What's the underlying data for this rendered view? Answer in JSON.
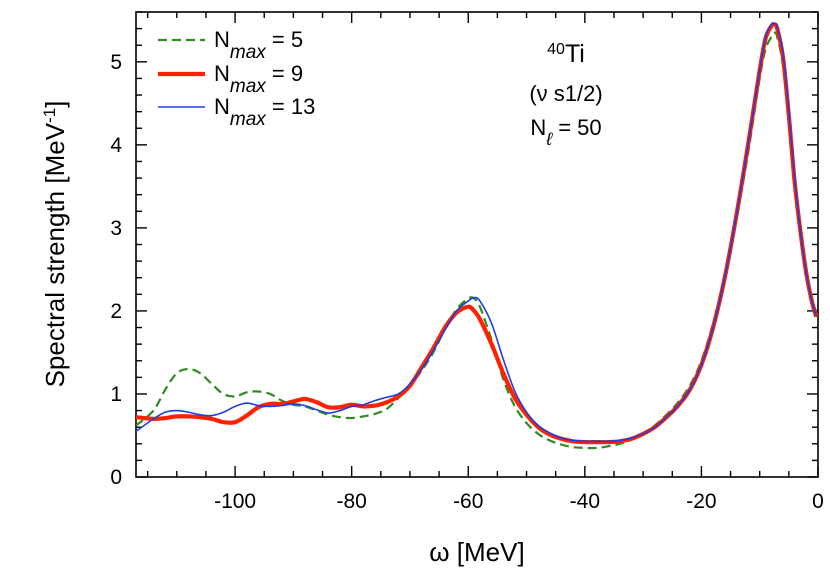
{
  "chart_data": {
    "type": "line",
    "xlabel": "ω [MeV]",
    "ylabel": "Spectral strength [MeV",
    "ylabel_sup": "-1",
    "ylabel_end": "]",
    "xlim": [
      -117,
      0
    ],
    "ylim": [
      0,
      5.6
    ],
    "x_ticks": [
      -100,
      -80,
      -60,
      -40,
      -20,
      0
    ],
    "x_tick_labels": [
      "-100",
      "-80",
      "-60",
      "-40",
      "-20",
      "0"
    ],
    "y_ticks": [
      0,
      1,
      2,
      3,
      4,
      5
    ],
    "y_tick_labels": [
      "0",
      "1",
      "2",
      "3",
      "4",
      "5"
    ],
    "grid": false,
    "legend_position": "top-left",
    "annotation": {
      "nucleus_mass": "40",
      "nucleus_symbol": "Ti",
      "orbital": "(ν s1/2)",
      "nl_base": "N",
      "nl_sub": "ℓ",
      "nl_value": " = 50"
    },
    "series": [
      {
        "legend_base": "N",
        "legend_sub": "max",
        "legend_value": " = 5",
        "color": "#2e8b1f",
        "style": "dashed",
        "x": [
          -117,
          -114,
          -112,
          -110,
          -108,
          -106,
          -104,
          -102,
          -100,
          -98,
          -96,
          -94,
          -92,
          -90,
          -88,
          -86,
          -84,
          -82,
          -80,
          -78,
          -76,
          -74,
          -72,
          -70,
          -68,
          -66,
          -64,
          -62,
          -60,
          -59,
          -58,
          -56,
          -54,
          -52,
          -50,
          -48,
          -46,
          -44,
          -42,
          -40,
          -38,
          -36,
          -34,
          -32,
          -30,
          -28,
          -26,
          -24,
          -22,
          -20,
          -18,
          -16,
          -14,
          -12,
          -10,
          -9,
          -8,
          -7.5,
          -7,
          -6,
          -5,
          -4,
          -3,
          -2,
          -1,
          -0.3
        ],
        "y": [
          0.62,
          0.8,
          1.05,
          1.25,
          1.3,
          1.25,
          1.12,
          1.0,
          0.97,
          1.02,
          1.03,
          1.0,
          0.92,
          0.87,
          0.85,
          0.8,
          0.75,
          0.72,
          0.71,
          0.73,
          0.76,
          0.82,
          0.95,
          1.1,
          1.28,
          1.5,
          1.78,
          2.02,
          2.15,
          2.15,
          2.05,
          1.65,
          1.18,
          0.85,
          0.65,
          0.52,
          0.44,
          0.39,
          0.36,
          0.35,
          0.35,
          0.37,
          0.4,
          0.45,
          0.52,
          0.62,
          0.75,
          0.9,
          1.1,
          1.4,
          1.85,
          2.4,
          3.1,
          3.9,
          4.8,
          5.15,
          5.3,
          5.35,
          5.3,
          4.95,
          4.25,
          3.5,
          2.9,
          2.4,
          2.05,
          1.9
        ]
      },
      {
        "legend_base": "N",
        "legend_sub": "max",
        "legend_value": " = 9",
        "color": "#ff2200",
        "style": "solid-thick",
        "x": [
          -117,
          -114,
          -112,
          -110,
          -108,
          -106,
          -104,
          -102,
          -100,
          -98,
          -96,
          -94,
          -92,
          -90,
          -88,
          -86,
          -84,
          -82,
          -80,
          -78,
          -76,
          -74,
          -72,
          -70,
          -68,
          -66,
          -64,
          -62,
          -60,
          -59,
          -58,
          -56,
          -54,
          -52,
          -50,
          -48,
          -46,
          -44,
          -42,
          -40,
          -38,
          -36,
          -34,
          -32,
          -30,
          -28,
          -26,
          -24,
          -22,
          -20,
          -18,
          -16,
          -14,
          -12,
          -10,
          -9,
          -8,
          -7.5,
          -7,
          -6,
          -5,
          -4,
          -3,
          -2,
          -1,
          -0.3
        ],
        "y": [
          0.72,
          0.7,
          0.71,
          0.73,
          0.73,
          0.72,
          0.7,
          0.66,
          0.66,
          0.74,
          0.84,
          0.88,
          0.88,
          0.91,
          0.94,
          0.9,
          0.84,
          0.84,
          0.87,
          0.85,
          0.86,
          0.9,
          0.97,
          1.1,
          1.32,
          1.55,
          1.8,
          1.98,
          2.05,
          2.0,
          1.9,
          1.6,
          1.25,
          0.95,
          0.75,
          0.6,
          0.51,
          0.46,
          0.43,
          0.42,
          0.42,
          0.42,
          0.43,
          0.46,
          0.52,
          0.6,
          0.72,
          0.86,
          1.05,
          1.35,
          1.8,
          2.4,
          3.15,
          4.0,
          4.9,
          5.28,
          5.43,
          5.45,
          5.4,
          5.05,
          4.35,
          3.55,
          2.95,
          2.45,
          2.1,
          1.95
        ]
      },
      {
        "legend_base": "N",
        "legend_sub": "max",
        "legend_value": " = 13",
        "color": "#1e3fe0",
        "style": "solid-thin",
        "x": [
          -117,
          -114,
          -112,
          -110,
          -108,
          -106,
          -104,
          -102,
          -100,
          -98,
          -96,
          -94,
          -92,
          -90,
          -88,
          -86,
          -84,
          -82,
          -80,
          -78,
          -76,
          -74,
          -72,
          -70,
          -68,
          -66,
          -64,
          -62,
          -60,
          -59,
          -58,
          -56,
          -54,
          -52,
          -50,
          -48,
          -46,
          -44,
          -42,
          -40,
          -38,
          -36,
          -34,
          -32,
          -30,
          -28,
          -26,
          -24,
          -22,
          -20,
          -18,
          -16,
          -14,
          -12,
          -10,
          -9,
          -8,
          -7.5,
          -7,
          -6,
          -5,
          -4,
          -3,
          -2,
          -1,
          -0.3
        ],
        "y": [
          0.55,
          0.7,
          0.78,
          0.8,
          0.78,
          0.75,
          0.74,
          0.78,
          0.85,
          0.89,
          0.86,
          0.85,
          0.86,
          0.88,
          0.86,
          0.81,
          0.77,
          0.8,
          0.85,
          0.87,
          0.92,
          0.96,
          1.0,
          1.12,
          1.3,
          1.52,
          1.77,
          2.0,
          2.12,
          2.16,
          2.12,
          1.85,
          1.42,
          1.03,
          0.78,
          0.62,
          0.53,
          0.47,
          0.44,
          0.43,
          0.43,
          0.43,
          0.44,
          0.47,
          0.52,
          0.6,
          0.72,
          0.86,
          1.05,
          1.35,
          1.8,
          2.4,
          3.15,
          4.0,
          4.9,
          5.3,
          5.45,
          5.46,
          5.42,
          5.1,
          4.4,
          3.6,
          2.95,
          2.45,
          2.1,
          1.95
        ]
      }
    ]
  }
}
